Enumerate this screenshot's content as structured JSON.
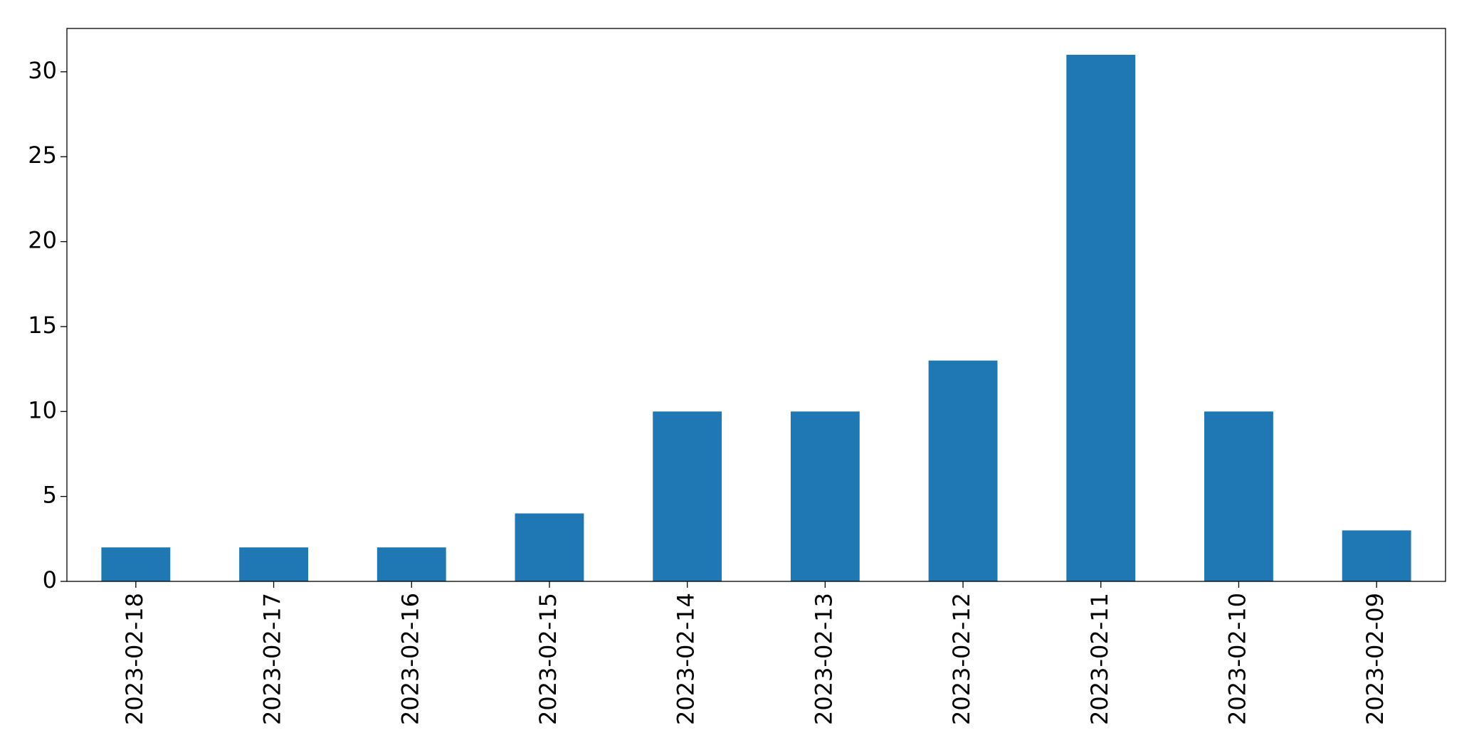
{
  "chart_data": {
    "type": "bar",
    "categories": [
      "2023-02-18",
      "2023-02-17",
      "2023-02-16",
      "2023-02-15",
      "2023-02-14",
      "2023-02-13",
      "2023-02-12",
      "2023-02-11",
      "2023-02-10",
      "2023-02-09"
    ],
    "values": [
      2,
      2,
      2,
      4,
      10,
      10,
      13,
      31,
      10,
      3
    ],
    "color": "#1f77b4",
    "ylim": [
      0,
      32.55
    ],
    "yticks": [
      0,
      5,
      10,
      15,
      20,
      25,
      30
    ]
  }
}
